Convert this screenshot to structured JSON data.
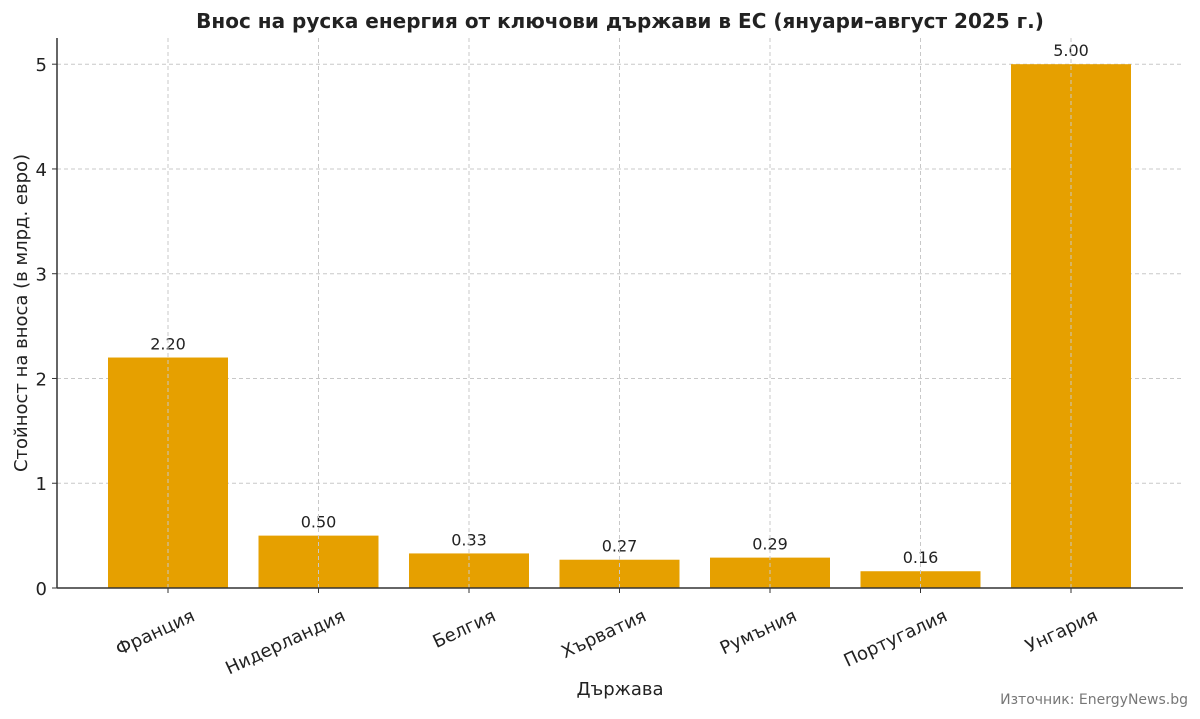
{
  "chart_data": {
    "type": "bar",
    "title": "Внос на руска енергия от ключови държави в ЕС (януари–август 2025 г.)",
    "xlabel": "Държава",
    "ylabel": "Стойност на вноса (в млрд. евро)",
    "categories": [
      "Франция",
      "Нидерландия",
      "Белгия",
      "Хърватия",
      "Румъния",
      "Португалия",
      "Унгария"
    ],
    "values": [
      2.2,
      0.5,
      0.33,
      0.27,
      0.29,
      0.16,
      5.0
    ],
    "value_labels": [
      "2.20",
      "0.50",
      "0.33",
      "0.27",
      "0.29",
      "0.16",
      "5.00"
    ],
    "ylim": [
      0,
      5.25
    ],
    "yticks": [
      0,
      1,
      2,
      3,
      4,
      5
    ],
    "grid": true,
    "bar_color": "#E6A000",
    "source": "Източник: EnergyNews.bg"
  }
}
